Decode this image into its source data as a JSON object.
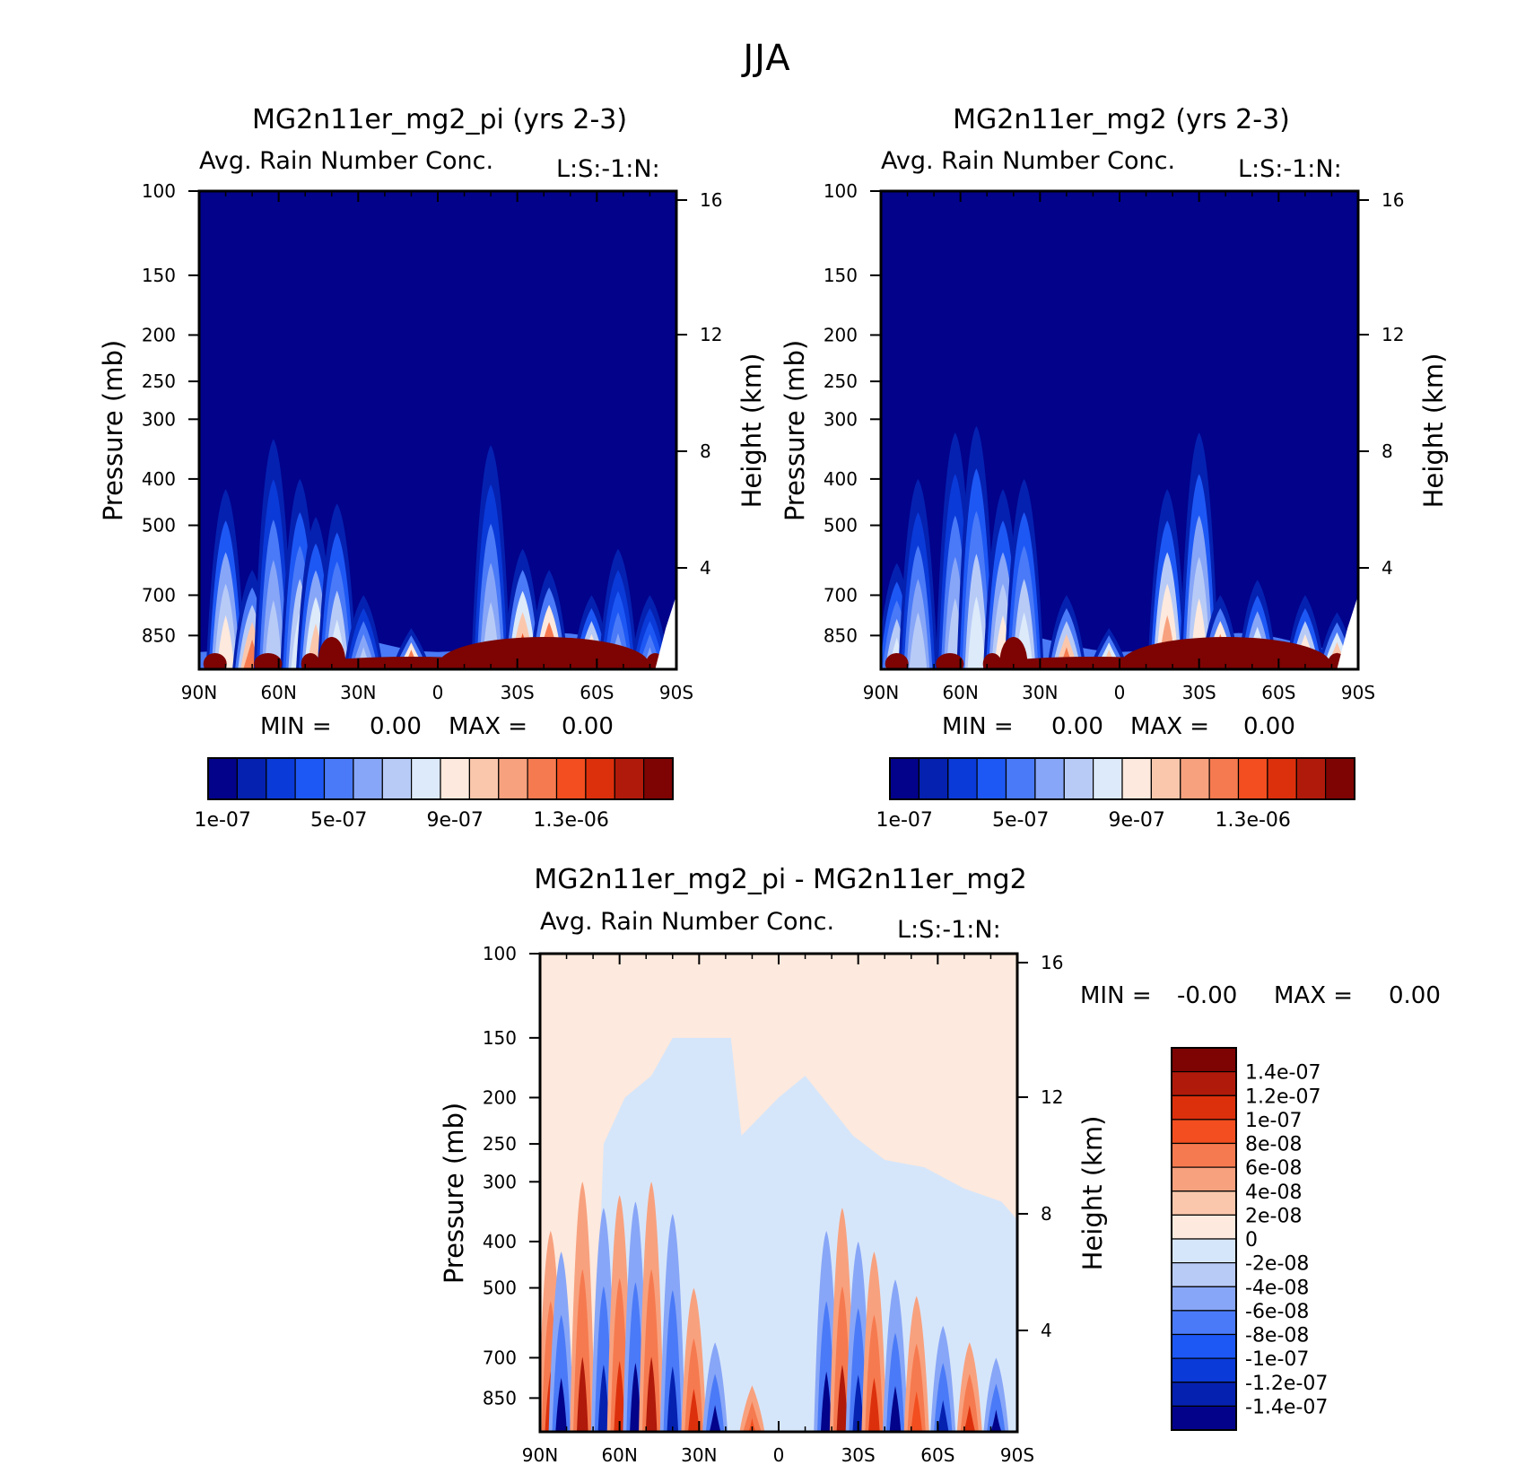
{
  "page": {
    "title": "JJA"
  },
  "palette": {
    "abs": [
      "#02028b",
      "#0521b0",
      "#0a3ad8",
      "#1d58f5",
      "#4a7af7",
      "#88a6f7",
      "#b8cbf7",
      "#dceafa",
      "#fde9dd",
      "#fbc7ac",
      "#f8a17e",
      "#f67a4f",
      "#f24e1f",
      "#dc300c",
      "#b01a0a",
      "#7d0403"
    ],
    "diff": [
      "#02028b",
      "#0521b0",
      "#0a3ad8",
      "#1d58f5",
      "#4a7af7",
      "#88a6f7",
      "#b8cbf7",
      "#d6e6fa",
      "#fde9dd",
      "#fbc7ac",
      "#f8a17e",
      "#f67a4f",
      "#f24e1f",
      "#dc300c",
      "#b01a0a",
      "#7d0403"
    ]
  },
  "chart_data": [
    {
      "id": "panel1",
      "type": "heatmap",
      "title": "MG2n11er_mg2_pi (yrs 2-3)",
      "subtitle": "Avg. Rain Number Conc.",
      "units_label": "L:S:-1:N:",
      "xlabel": "",
      "ylabel": "Pressure (mb)",
      "y2label": "Height (km)",
      "x_ticks": [
        "90N",
        "60N",
        "30N",
        "0",
        "30S",
        "60S",
        "90S"
      ],
      "y_ticks": [
        "100",
        "150",
        "200",
        "250",
        "300",
        "400",
        "500",
        "700",
        "850"
      ],
      "y2_ticks": [
        "16",
        "12",
        "8",
        "4"
      ],
      "ylim": [
        1000,
        100
      ],
      "min_label": "MIN =",
      "min_value": "0.00",
      "max_label": "MAX =",
      "max_value": "0.00",
      "colorbar_ticks": [
        "1e-07",
        "5e-07",
        "9e-07",
        "1.3e-06"
      ],
      "features": [
        {
          "lat": 80,
          "top": 420,
          "level": 8
        },
        {
          "lat": 70,
          "top": 620,
          "level": 11
        },
        {
          "lat": 62,
          "top": 330,
          "level": 6
        },
        {
          "lat": 52,
          "top": 400,
          "level": 7
        },
        {
          "lat": 46,
          "top": 480,
          "level": 9
        },
        {
          "lat": 38,
          "top": 450,
          "level": 7
        },
        {
          "lat": 28,
          "top": 700,
          "level": 6
        },
        {
          "lat": 10,
          "top": 820,
          "level": 14
        },
        {
          "lat": -20,
          "top": 340,
          "level": 6
        },
        {
          "lat": -32,
          "top": 560,
          "level": 12
        },
        {
          "lat": -42,
          "top": 620,
          "level": 14
        },
        {
          "lat": -58,
          "top": 700,
          "level": 10
        },
        {
          "lat": -68,
          "top": 560,
          "level": 5
        },
        {
          "lat": -80,
          "top": 700,
          "level": 5
        }
      ]
    },
    {
      "id": "panel2",
      "type": "heatmap",
      "title": "MG2n11er_mg2 (yrs 2-3)",
      "subtitle": "Avg. Rain Number Conc.",
      "units_label": "L:S:-1:N:",
      "xlabel": "",
      "ylabel": "Pressure (mb)",
      "y2label": "Height (km)",
      "x_ticks": [
        "90N",
        "60N",
        "30N",
        "0",
        "30S",
        "60S",
        "90S"
      ],
      "y_ticks": [
        "100",
        "150",
        "200",
        "250",
        "300",
        "400",
        "500",
        "700",
        "850"
      ],
      "y2_ticks": [
        "16",
        "12",
        "8",
        "4"
      ],
      "ylim": [
        1000,
        100
      ],
      "min_label": "MIN =",
      "min_value": "0.00",
      "max_label": "MAX =",
      "max_value": "0.00",
      "colorbar_ticks": [
        "1e-07",
        "5e-07",
        "9e-07",
        "1.3e-06"
      ],
      "features": [
        {
          "lat": 84,
          "top": 600,
          "level": 7
        },
        {
          "lat": 76,
          "top": 400,
          "level": 6
        },
        {
          "lat": 62,
          "top": 320,
          "level": 6
        },
        {
          "lat": 54,
          "top": 310,
          "level": 7
        },
        {
          "lat": 44,
          "top": 420,
          "level": 8
        },
        {
          "lat": 36,
          "top": 400,
          "level": 7
        },
        {
          "lat": 20,
          "top": 700,
          "level": 11
        },
        {
          "lat": 4,
          "top": 820,
          "level": 12
        },
        {
          "lat": -18,
          "top": 420,
          "level": 10
        },
        {
          "lat": -30,
          "top": 320,
          "level": 8
        },
        {
          "lat": -38,
          "top": 700,
          "level": 14
        },
        {
          "lat": -52,
          "top": 650,
          "level": 9
        },
        {
          "lat": -70,
          "top": 700,
          "level": 10
        },
        {
          "lat": -82,
          "top": 760,
          "level": 12
        }
      ]
    },
    {
      "id": "panel3",
      "type": "heatmap",
      "title": "MG2n11er_mg2_pi - MG2n11er_mg2",
      "subtitle": "Avg. Rain Number Conc.",
      "units_label": "L:S:-1:N:",
      "xlabel": "",
      "ylabel": "Pressure (mb)",
      "y2label": "Height (km)",
      "x_ticks": [
        "90N",
        "60N",
        "30N",
        "0",
        "30S",
        "60S",
        "90S"
      ],
      "y_ticks": [
        "100",
        "150",
        "200",
        "250",
        "300",
        "400",
        "500",
        "700",
        "850"
      ],
      "y2_ticks": [
        "16",
        "12",
        "8",
        "4"
      ],
      "ylim": [
        1000,
        100
      ],
      "min_label": "MIN =",
      "min_value": "-0.00",
      "max_label": "MAX =",
      "max_value": "0.00",
      "colorbar_ticks": [
        "1.4e-07",
        "1.2e-07",
        "1e-07",
        "8e-08",
        "6e-08",
        "4e-08",
        "2e-08",
        "0",
        "-2e-08",
        "-4e-08",
        "-6e-08",
        "-8e-08",
        "-1e-07",
        "-1.2e-07",
        "-1.4e-07"
      ],
      "features": [
        {
          "lat": 86,
          "top": 380,
          "level": 13
        },
        {
          "lat": 82,
          "top": 420,
          "level": 0
        },
        {
          "lat": 74,
          "top": 300,
          "level": 14
        },
        {
          "lat": 66,
          "top": 340,
          "level": 1
        },
        {
          "lat": 60,
          "top": 320,
          "level": 13
        },
        {
          "lat": 54,
          "top": 330,
          "level": 0
        },
        {
          "lat": 48,
          "top": 300,
          "level": 14
        },
        {
          "lat": 40,
          "top": 350,
          "level": 1
        },
        {
          "lat": 32,
          "top": 500,
          "level": 13
        },
        {
          "lat": 24,
          "top": 650,
          "level": 0
        },
        {
          "lat": 10,
          "top": 800,
          "level": 12
        },
        {
          "lat": -18,
          "top": 380,
          "level": 0
        },
        {
          "lat": -24,
          "top": 340,
          "level": 14
        },
        {
          "lat": -30,
          "top": 400,
          "level": 1
        },
        {
          "lat": -36,
          "top": 420,
          "level": 13
        },
        {
          "lat": -44,
          "top": 480,
          "level": 0
        },
        {
          "lat": -52,
          "top": 520,
          "level": 12
        },
        {
          "lat": -62,
          "top": 600,
          "level": 1
        },
        {
          "lat": -72,
          "top": 650,
          "level": 13
        },
        {
          "lat": -82,
          "top": 700,
          "level": 0
        }
      ]
    }
  ]
}
